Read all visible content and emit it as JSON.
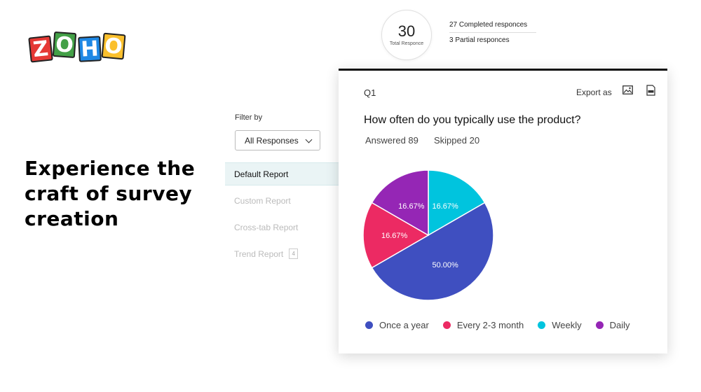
{
  "logo": {
    "letters": [
      "Z",
      "O",
      "H",
      "O"
    ],
    "colors": [
      "#e53935",
      "#43a047",
      "#1e88e5",
      "#fbc02d"
    ]
  },
  "hero": {
    "line1": "Experience the",
    "line2": "craft of survey",
    "line3": "creation"
  },
  "summary": {
    "total": "30",
    "total_label": "Total Responce",
    "completed": "27 Completed responces",
    "partial": "3 Partial responces"
  },
  "filter": {
    "label": "Filter by",
    "selected": "All Responses",
    "icon": "chevron-down-icon"
  },
  "reports": [
    {
      "label": "Default Report",
      "active": true
    },
    {
      "label": "Custom Report",
      "active": false
    },
    {
      "label": "Cross-tab Report",
      "active": false
    },
    {
      "label": "Trend Report",
      "active": false,
      "badge": "4"
    }
  ],
  "card": {
    "question_number": "Q1",
    "export_label": "Export as",
    "export_icons": [
      "image-icon",
      "pdf-icon"
    ],
    "question": "How often do you typically use the product?",
    "answered": "Answered 89",
    "skipped": "Skipped 20"
  },
  "chart_data": {
    "type": "pie",
    "categories": [
      "Once a year",
      "Every 2-3 month",
      "Weekly",
      "Daily"
    ],
    "values": [
      50.0,
      16.67,
      16.67,
      16.67
    ],
    "labels": [
      "50.00%",
      "16.67%",
      "16.67%",
      "16.67%"
    ],
    "colors": [
      "#3f4fc0",
      "#ec2a63",
      "#00c4de",
      "#9526b5"
    ],
    "legend_position": "bottom"
  }
}
